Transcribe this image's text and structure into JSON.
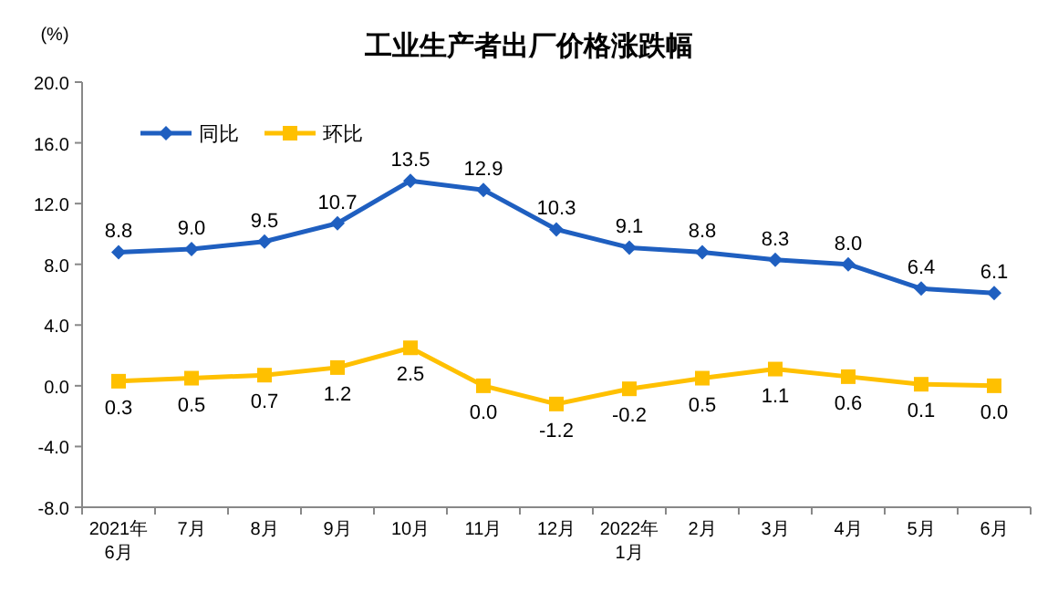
{
  "chart_data": {
    "type": "line",
    "title": "工业生产者出厂价格涨跌幅",
    "ylabel": "(%)",
    "categories": [
      "2021年\n6月",
      "7月",
      "8月",
      "9月",
      "10月",
      "11月",
      "12月",
      "2022年\n1月",
      "2月",
      "3月",
      "4月",
      "5月",
      "6月"
    ],
    "series": [
      {
        "name": "同比",
        "color": "#1f5fc0",
        "marker": "diamond",
        "values": [
          8.8,
          9.0,
          9.5,
          10.7,
          13.5,
          12.9,
          10.3,
          9.1,
          8.8,
          8.3,
          8.0,
          6.4,
          6.1
        ],
        "value_labels": [
          "8.8",
          "9.0",
          "9.5",
          "10.7",
          "13.5",
          "12.9",
          "10.3",
          "9.1",
          "8.8",
          "8.3",
          "8.0",
          "6.4",
          "6.1"
        ]
      },
      {
        "name": "环比",
        "color": "#ffc000",
        "marker": "square",
        "values": [
          0.3,
          0.5,
          0.7,
          1.2,
          2.5,
          0.0,
          -1.2,
          -0.2,
          0.5,
          1.1,
          0.6,
          0.1,
          0.0
        ],
        "value_labels": [
          "0.3",
          "0.5",
          "0.7",
          "1.2",
          "2.5",
          "0.0",
          "-1.2",
          "-0.2",
          "0.5",
          "1.1",
          "0.6",
          "0.1",
          "0.0"
        ]
      }
    ],
    "ylim": [
      -8,
      20
    ],
    "yticks": [
      {
        "value": -8,
        "label": "-8.0"
      },
      {
        "value": -4,
        "label": "-4.0"
      },
      {
        "value": 0,
        "label": "0.0"
      },
      {
        "value": 4,
        "label": "4.0"
      },
      {
        "value": 8,
        "label": "8.0"
      },
      {
        "value": 12,
        "label": "12.0"
      },
      {
        "value": 16,
        "label": "16.0"
      },
      {
        "value": 20,
        "label": "20.0"
      }
    ],
    "legend": "top left",
    "grid": false,
    "line_style": "solid"
  }
}
